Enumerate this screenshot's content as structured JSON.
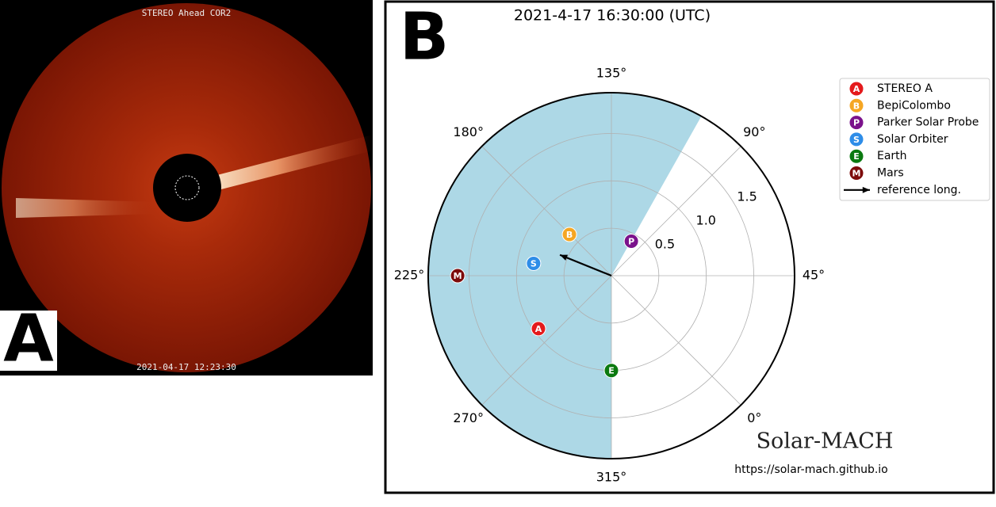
{
  "panel_labels": [
    "A",
    "B"
  ],
  "image": {
    "title": "STEREO Ahead COR2",
    "timestamp": "2021-04-17 12:23:30"
  },
  "chart_data": {
    "type": "polar",
    "title": "2021-4-17 16:30:00 (UTC)",
    "theta_offset": -45,
    "rlim": [
      0,
      1.93
    ],
    "rticks": [
      0.5,
      {
        "value": 1,
        "label": "1.0"
      },
      1.5
    ],
    "thetaticks": [
      {
        "value": 0,
        "label": "0°"
      },
      {
        "value": 45,
        "label": "45°"
      },
      {
        "value": 90,
        "label": "90°"
      },
      {
        "value": 135,
        "label": "135°"
      },
      {
        "value": 180,
        "label": "180°"
      },
      {
        "value": 225,
        "label": "225°"
      },
      {
        "value": 270,
        "label": "270°"
      },
      {
        "value": 315,
        "label": "315°"
      }
    ],
    "shade": [
      105.6,
      315
    ],
    "shade_color": "#add8e6",
    "series": [
      {
        "name": "STEREO A",
        "marker": "A",
        "color": "#e41a1c",
        "r": 0.95,
        "lon": 261
      },
      {
        "name": "BepiColombo",
        "marker": "B",
        "color": "#f5a623",
        "r": 0.62,
        "lon": 180.5
      },
      {
        "name": "Parker Solar Probe",
        "marker": "P",
        "color": "#7b128c",
        "r": 0.42,
        "lon": 105
      },
      {
        "name": "Solar Orbiter",
        "marker": "S",
        "color": "#2e8de8",
        "r": 0.83,
        "lon": 216
      },
      {
        "name": "Earth",
        "marker": "E",
        "color": "#0b7a10",
        "r": 1.0,
        "lon": 315
      },
      {
        "name": "Mars",
        "marker": "M",
        "color": "#7d0b0b",
        "r": 1.62,
        "lon": 225
      }
    ],
    "reference": {
      "name": "reference long.",
      "lon": 203
    },
    "brand": "Solar-MACH",
    "url": "https://solar-mach.github.io"
  }
}
